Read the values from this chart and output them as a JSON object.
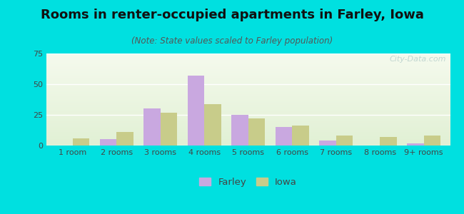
{
  "title": "Rooms in renter-occupied apartments in Farley, Iowa",
  "subtitle": "(Note: State values scaled to Farley population)",
  "categories": [
    "1 room",
    "2 rooms",
    "3 rooms",
    "4 rooms",
    "5 rooms",
    "6 rooms",
    "7 rooms",
    "8 rooms",
    "9+ rooms"
  ],
  "farley": [
    0,
    5,
    30,
    57,
    25,
    15,
    4,
    0,
    2
  ],
  "iowa": [
    6,
    11,
    27,
    34,
    22,
    16,
    8,
    7,
    8
  ],
  "farley_color": "#c9a8e0",
  "iowa_color": "#c8cc8a",
  "background_outer": "#00e0e0",
  "ylim": [
    0,
    75
  ],
  "yticks": [
    0,
    25,
    50,
    75
  ],
  "bar_width": 0.38,
  "title_fontsize": 13,
  "subtitle_fontsize": 8.5,
  "tick_fontsize": 8,
  "legend_fontsize": 9.5,
  "watermark_text": "City-Data.com"
}
